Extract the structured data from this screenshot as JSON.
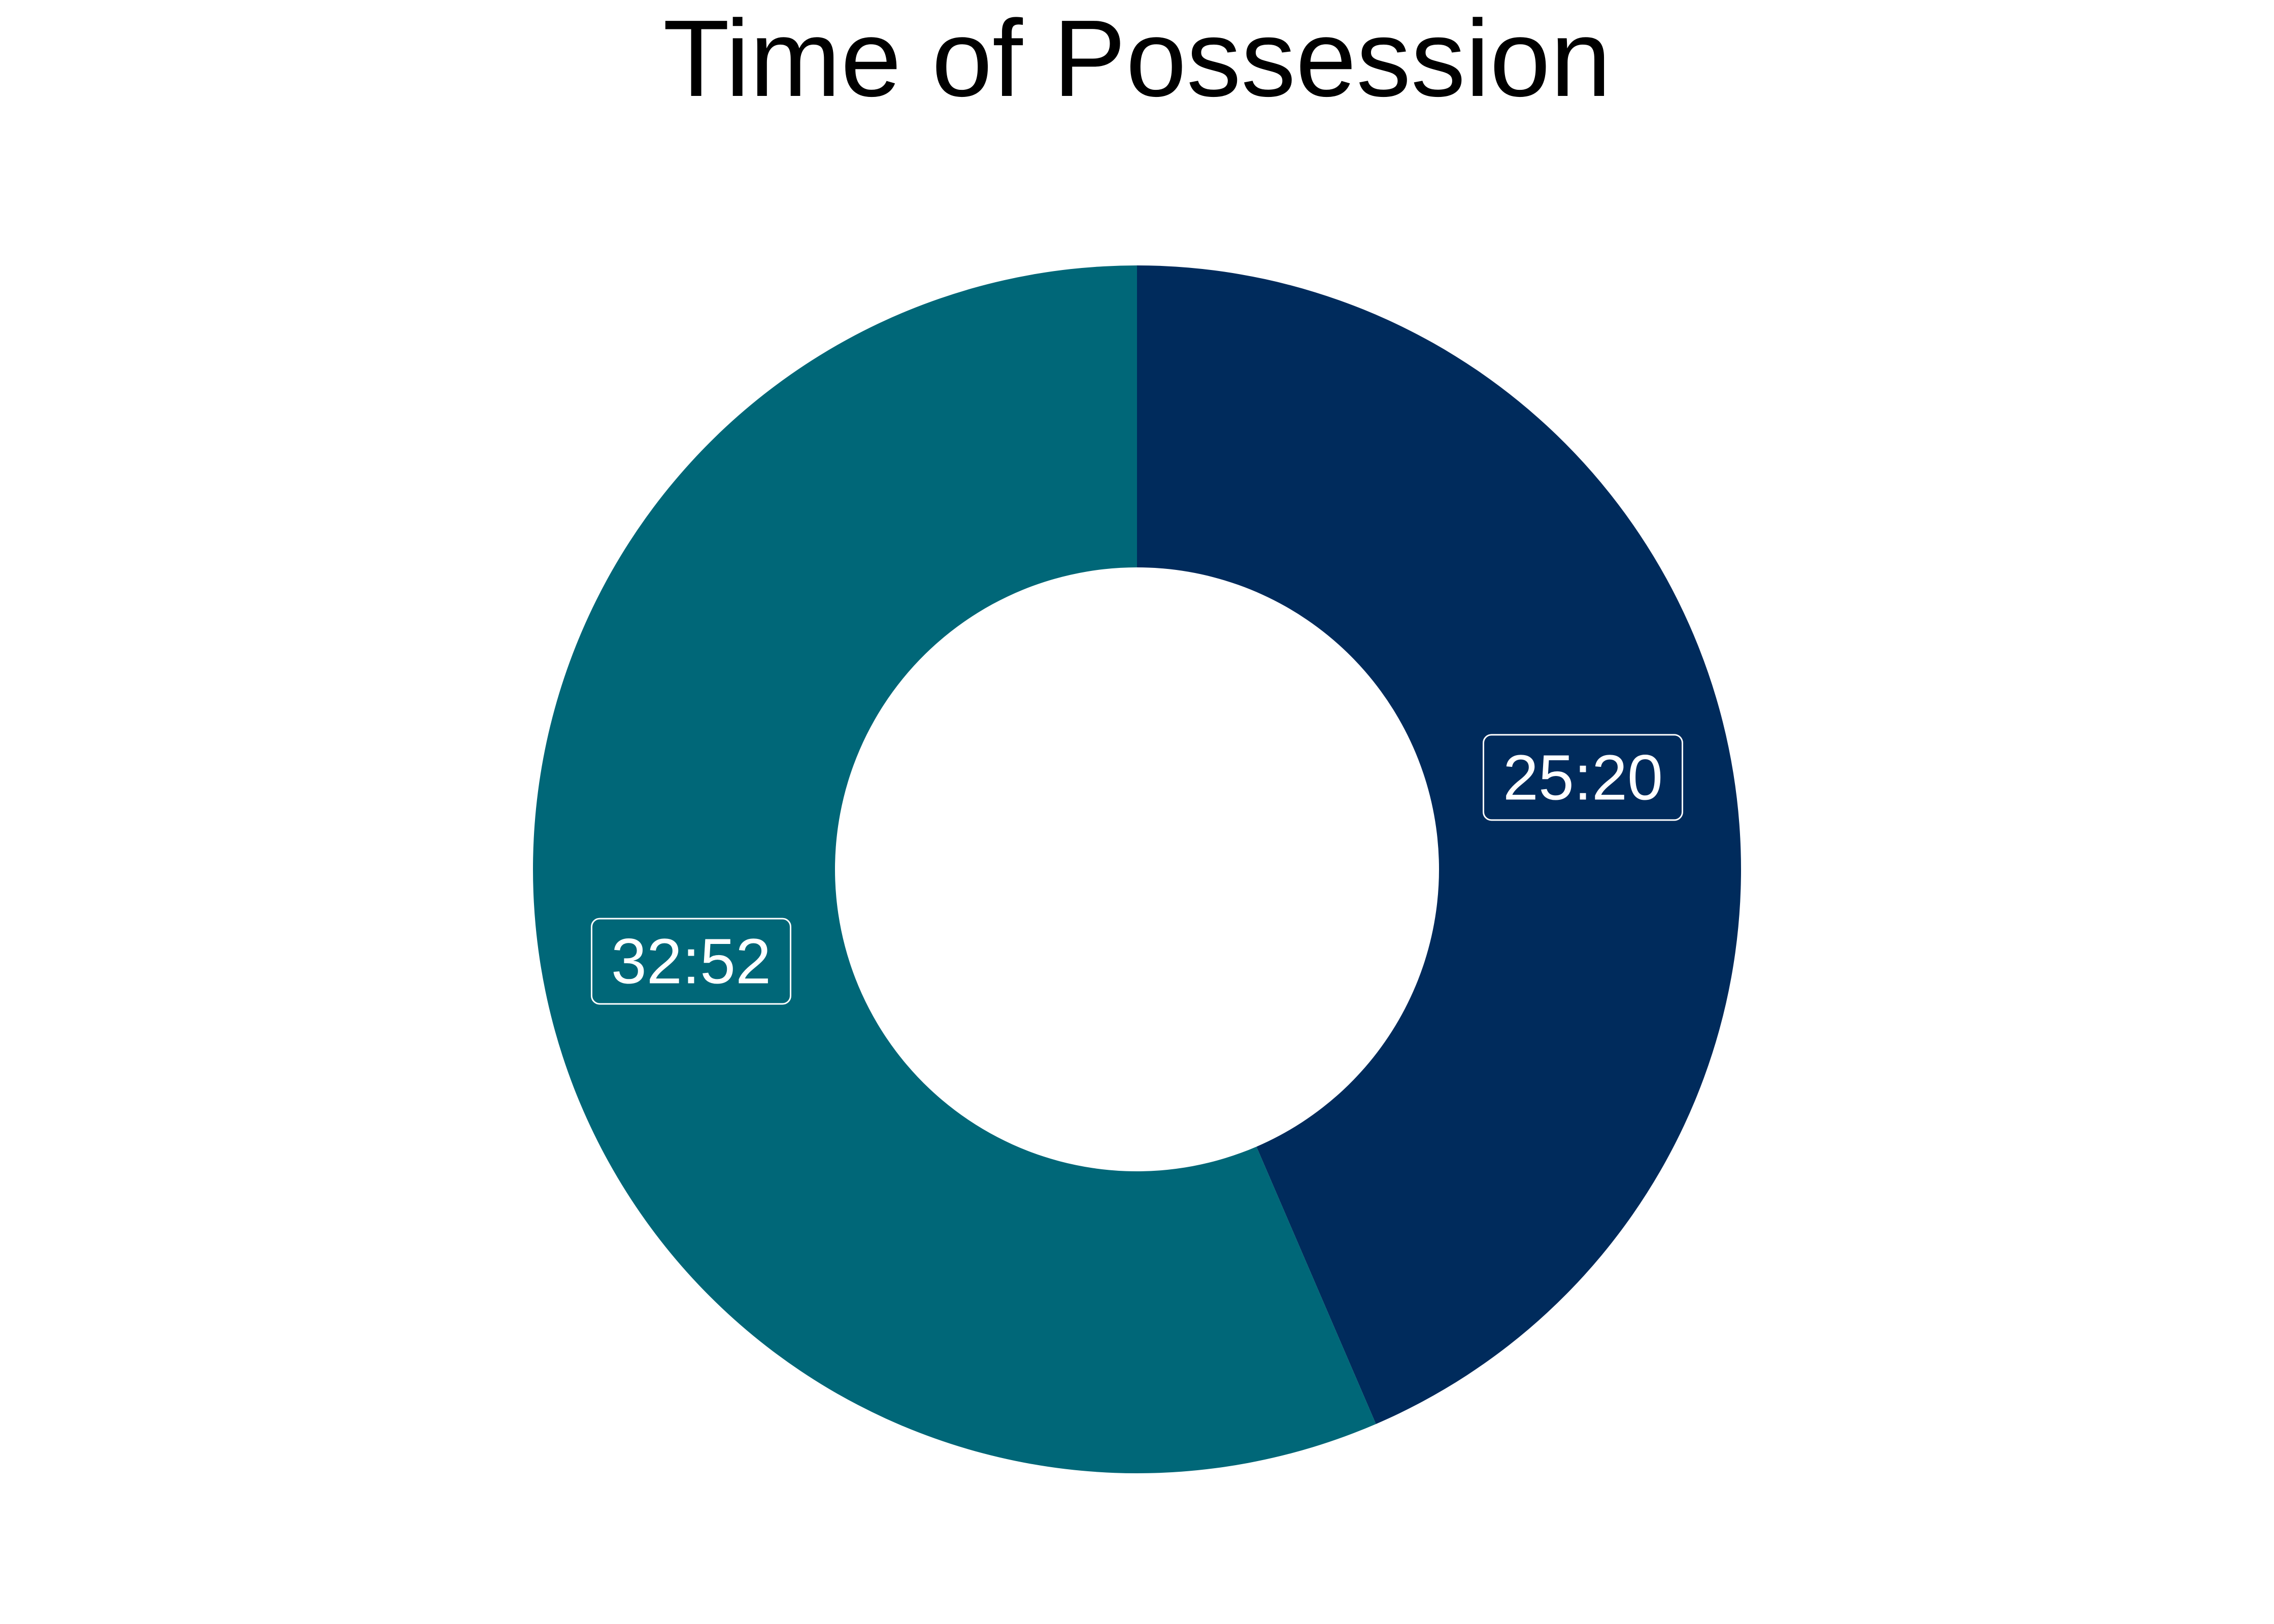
{
  "chart_data": {
    "type": "pie",
    "title": "Time of Possession",
    "donut": true,
    "slices": [
      {
        "label": "25:20",
        "value_minutes": 25.333,
        "color": "#002b5c"
      },
      {
        "label": "32:52",
        "value_minutes": 32.867,
        "color": "#006778"
      }
    ],
    "start_angle": "12 o'clock",
    "direction": "clockwise",
    "label_border_color": "#ffffff",
    "label_text_color": "#ffffff"
  }
}
